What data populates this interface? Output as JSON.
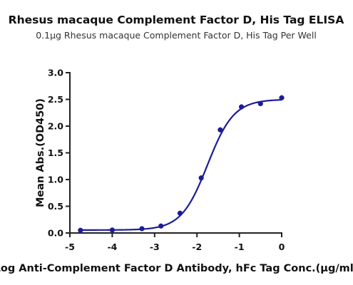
{
  "chart_data": {
    "type": "scatter",
    "title": "Rhesus macaque Complement Factor D, His Tag ELISA",
    "subtitle": "0.1μg Rhesus macaque Complement Factor D, His Tag Per Well",
    "xlabel": "Log Anti-Complement Factor D  Antibody, hFc Tag Conc.(μg/ml)",
    "ylabel": "Mean Abs.(OD450)",
    "xlim": [
      -5,
      0
    ],
    "ylim": [
      0,
      3.0
    ],
    "xticks": [
      "-5",
      "-4",
      "-3",
      "-2",
      "-1",
      "0"
    ],
    "yticks": [
      "0.0",
      "0.5",
      "1.0",
      "1.5",
      "2.0",
      "2.5",
      "3.0"
    ],
    "grid": false,
    "series": [
      {
        "color": "#1c1c9a",
        "points": [
          {
            "x": -4.75,
            "y": 0.05
          },
          {
            "x": -4.0,
            "y": 0.055
          },
          {
            "x": -3.3,
            "y": 0.08
          },
          {
            "x": -2.85,
            "y": 0.13
          },
          {
            "x": -2.4,
            "y": 0.37
          },
          {
            "x": -1.9,
            "y": 1.03
          },
          {
            "x": -1.45,
            "y": 1.93
          },
          {
            "x": -0.95,
            "y": 2.36
          },
          {
            "x": -0.5,
            "y": 2.42
          },
          {
            "x": 0.0,
            "y": 2.53
          }
        ],
        "fit": {
          "bottom": 0.055,
          "top": 2.5,
          "logEC50": -1.75,
          "hill": 1.4
        }
      }
    ]
  }
}
